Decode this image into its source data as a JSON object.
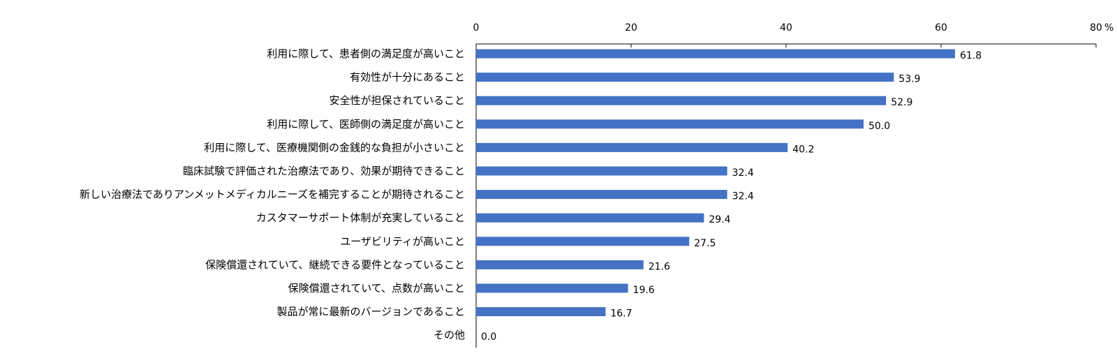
{
  "chart_data": {
    "type": "bar",
    "orientation": "horizontal",
    "title": "",
    "xlabel": "",
    "ylabel": "",
    "unit": "%",
    "xlim": [
      0,
      80
    ],
    "xticks": [
      "0",
      "20",
      "40",
      "60",
      "80"
    ],
    "categories": [
      "利用に際して、患者側の満足度が高いこと",
      "有効性が十分にあること",
      "安全性が担保されていること",
      "利用に際して、医師側の満足度が高いこと",
      "利用に際して、医療機関側の金銭的な負担が小さいこと",
      "臨床試験で評価された治療法であり、効果が期待できること",
      "新しい治療法でありアンメットメディカルニーズを補完することが期待されること",
      "カスタマーサポート体制が充実していること",
      "ユーザビリティが高いこと",
      "保険償還されていて、継続できる要件となっていること",
      "保険償還されていて、点数が高いこと",
      "製品が常に最新のバージョンであること",
      "その他"
    ],
    "values": [
      61.8,
      53.9,
      52.9,
      50.0,
      40.2,
      32.4,
      32.4,
      29.4,
      27.5,
      21.6,
      19.6,
      16.7,
      0.0
    ],
    "value_labels": [
      "61.8",
      "53.9",
      "52.9",
      "50.0",
      "40.2",
      "32.4",
      "32.4",
      "29.4",
      "27.5",
      "21.6",
      "19.6",
      "16.7",
      "0.0"
    ],
    "bar_color": "#4472C4",
    "axis_color": "#000000",
    "grid": false,
    "legend": "none"
  }
}
